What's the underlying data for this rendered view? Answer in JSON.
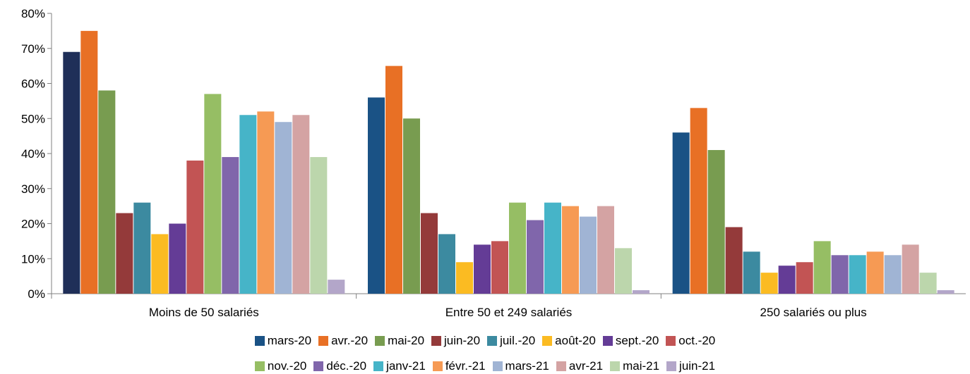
{
  "chart_data": {
    "type": "bar",
    "title": "",
    "xlabel": "",
    "ylabel": "",
    "ylim": [
      0,
      80
    ],
    "y_ticks": [
      "0%",
      "10%",
      "20%",
      "30%",
      "40%",
      "50%",
      "60%",
      "70%",
      "80%"
    ],
    "grid": false,
    "legend_position": "bottom",
    "categories": [
      "Moins de 50 salariés",
      "Entre 50 et 249 salariés",
      "250 salariés ou plus"
    ],
    "series": [
      {
        "name": "mars-20",
        "color": "#1f4e79",
        "values": [
          69,
          56,
          46
        ]
      },
      {
        "name": "avr.-20",
        "color": "#e87025",
        "values": [
          75,
          65,
          53
        ]
      },
      {
        "name": "mai-20",
        "color": "#789c50",
        "values": [
          58,
          50,
          41
        ]
      },
      {
        "name": "juin-20",
        "color": "#943a3a",
        "values": [
          23,
          23,
          19
        ]
      },
      {
        "name": "juil.-20",
        "color": "#3c8aa0",
        "values": [
          26,
          17,
          12
        ]
      },
      {
        "name": "août-20",
        "color": "#fbbb22",
        "values": [
          17,
          9,
          6
        ]
      },
      {
        "name": "sept.-20",
        "color": "#643c96",
        "values": [
          20,
          14,
          8
        ]
      },
      {
        "name": "oct.-20",
        "color": "#c25454",
        "values": [
          38,
          15,
          9
        ]
      },
      {
        "name": "nov.-20",
        "color": "#96be64",
        "values": [
          57,
          26,
          15
        ]
      },
      {
        "name": "déc.-20",
        "color": "#8066ab",
        "values": [
          39,
          21,
          11
        ]
      },
      {
        "name": "janv-21",
        "color": "#46b4c8",
        "values": [
          51,
          26,
          11
        ]
      },
      {
        "name": "févr.-21",
        "color": "#f69a54",
        "values": [
          52,
          25,
          12
        ]
      },
      {
        "name": "mars-21",
        "color": "#a0b4d4",
        "values": [
          49,
          22,
          11
        ]
      },
      {
        "name": "avr-21",
        "color": "#d4a3a3",
        "values": [
          51,
          25,
          14
        ]
      },
      {
        "name": "mai-21",
        "color": "#bcd6ac",
        "values": [
          39,
          13,
          6
        ]
      },
      {
        "name": "juin-21",
        "color": "#b3a6c9",
        "values": [
          4,
          1,
          1
        ]
      }
    ],
    "first_series_color_by_category": [
      "#1f2f58",
      "#1a5285",
      "#1a5285"
    ]
  }
}
